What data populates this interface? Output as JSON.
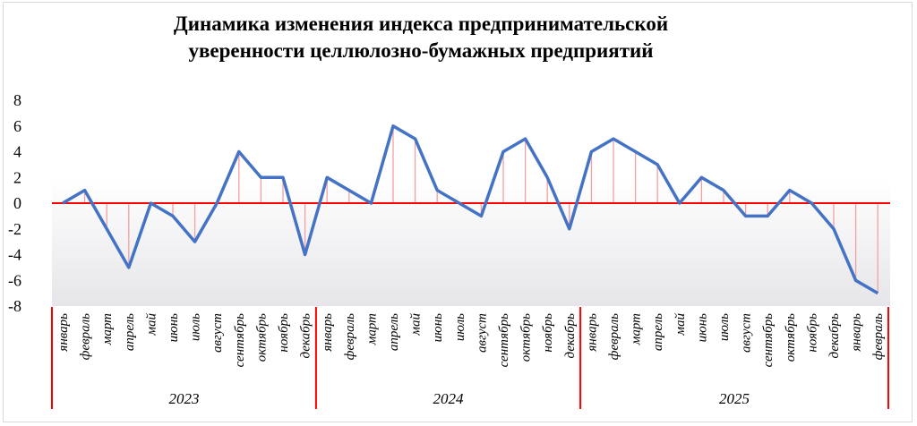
{
  "chart_data": {
    "type": "line",
    "title_lines": [
      "Динамика изменения индекса предпринимательской",
      "уверенности целлюлозно-бумажных предприятий"
    ],
    "ylim": [
      -8,
      8
    ],
    "yticks": [
      "8",
      "6",
      "4",
      "2",
      "0",
      "-2",
      "-4",
      "-6",
      "-8"
    ],
    "ytick_values": [
      8,
      6,
      4,
      2,
      0,
      -2,
      -4,
      -6,
      -8
    ],
    "grid": false,
    "legend": "none",
    "colors": {
      "line": "#4472c4",
      "zero_line": "#ff0000",
      "drop_lines": "#f4a0a0",
      "year_separator": "#ff0000",
      "band_top": "#ffffff",
      "band_bottom": "#e6e6ea"
    },
    "years": [
      {
        "label": "2023",
        "start": 0,
        "count": 12
      },
      {
        "label": "2024",
        "start": 12,
        "count": 12
      },
      {
        "label": "2025",
        "start": 24,
        "count": 14
      }
    ],
    "categories": [
      "январь",
      "февраль",
      "март",
      "апрель",
      "май",
      "июнь",
      "июль",
      "август",
      "сентябрь",
      "октябрь",
      "ноябрь",
      "декабрь",
      "январь",
      "февраль",
      "март",
      "апрель",
      "май",
      "июнь",
      "июль",
      "август",
      "сентябрь",
      "октябрь",
      "ноябрь",
      "декабрь",
      "январь",
      "февраль",
      "март",
      "апрель",
      "май",
      "июнь",
      "июль",
      "август",
      "сентябрь",
      "октябрь",
      "ноябрь",
      "декабрь",
      "январь",
      "февраль"
    ],
    "values": [
      0,
      1,
      -2,
      -5,
      0,
      -1,
      -3,
      0,
      4,
      2,
      2,
      -4,
      2,
      1,
      0,
      6,
      5,
      1,
      0,
      -1,
      4,
      5,
      2,
      -2,
      4,
      5,
      4,
      3,
      0,
      2,
      1,
      -1,
      -1,
      1,
      0,
      -2,
      -6,
      -7
    ]
  }
}
